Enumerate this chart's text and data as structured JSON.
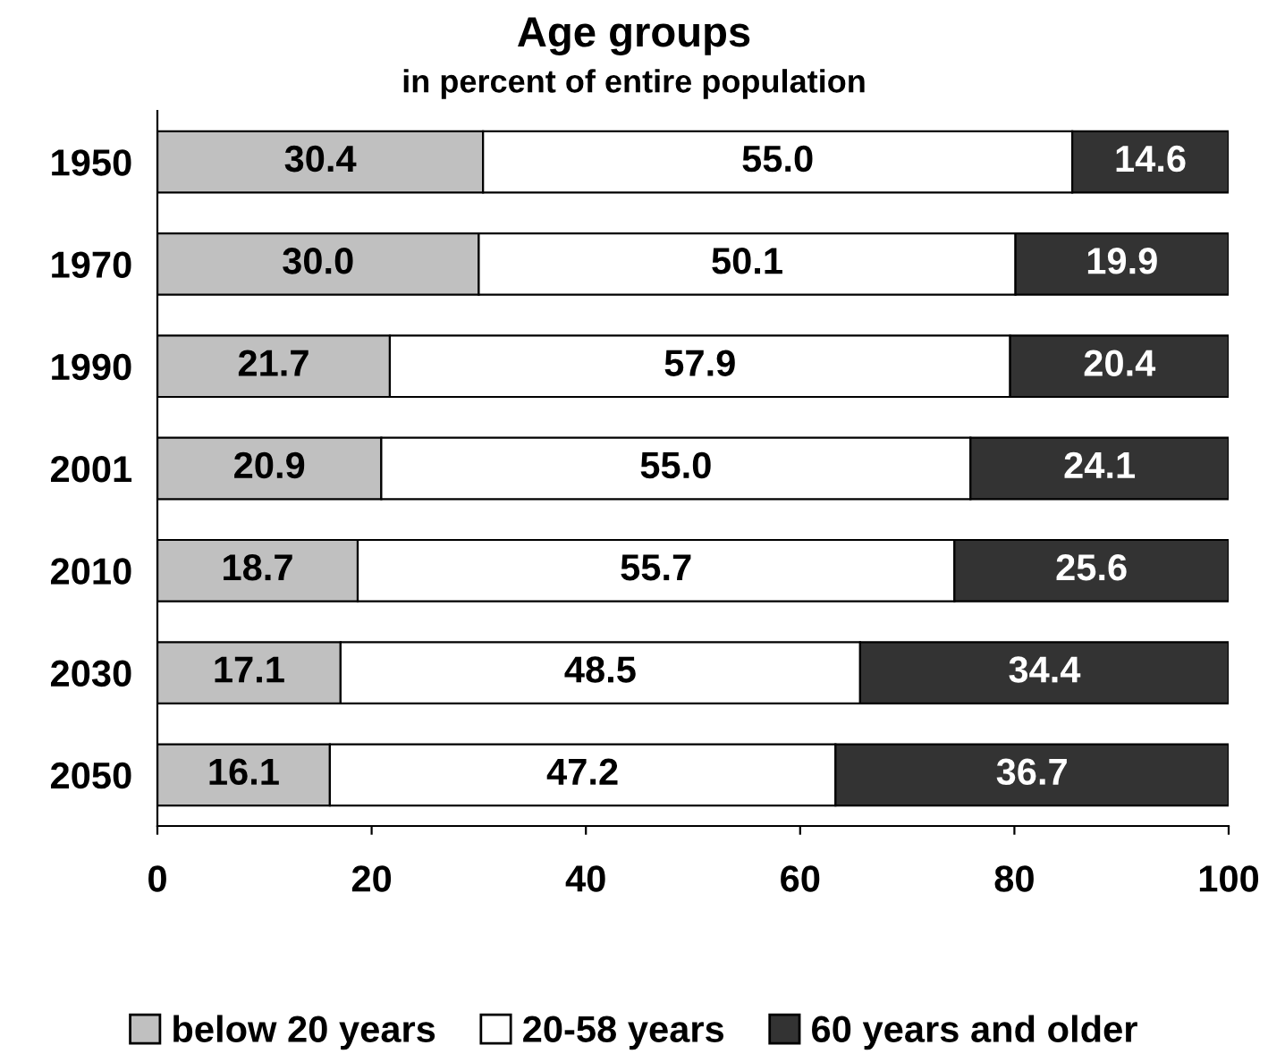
{
  "chart_data": {
    "type": "bar",
    "orientation": "horizontal",
    "stacked": true,
    "title": "Age groups",
    "subtitle": "in percent of entire population",
    "categories": [
      "1950",
      "1970",
      "1990",
      "2001",
      "2010",
      "2030",
      "2050"
    ],
    "series": [
      {
        "name": "below 20 years",
        "color": "#c0c0c0",
        "values": [
          30.4,
          30.0,
          21.7,
          20.9,
          18.7,
          17.1,
          16.1
        ],
        "value_labels": [
          "30.4",
          "30.0",
          "21.7",
          "20.9",
          "18.7",
          "17.1",
          "16.1"
        ]
      },
      {
        "name": "20-58 years",
        "color": "#ffffff",
        "values": [
          55.0,
          50.1,
          57.9,
          55.0,
          55.7,
          48.5,
          47.2
        ],
        "value_labels": [
          "55.0",
          "50.1",
          "57.9",
          "55.0",
          "55.7",
          "48.5",
          "47.2"
        ]
      },
      {
        "name": "60 years and older",
        "color": "#333333",
        "values": [
          14.6,
          19.9,
          20.4,
          24.1,
          25.6,
          34.4,
          36.7
        ],
        "value_labels": [
          "14.6",
          "19.9",
          "20.4",
          "24.1",
          "25.6",
          "34.4",
          "36.7"
        ]
      }
    ],
    "xlim": [
      0,
      100
    ],
    "xticks": [
      0,
      20,
      40,
      60,
      80,
      100
    ],
    "grid": false,
    "legend": "bottom"
  }
}
